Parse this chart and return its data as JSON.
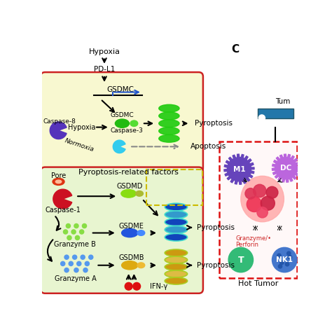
{
  "bg_color": "#ffffff",
  "upper_cell_bg": "#f8f8d0",
  "lower_cell_bg": "#e8f5d0",
  "upper_cell_border": "#cc2222",
  "lower_cell_border": "#cc2222",
  "title_C": "C",
  "label_hypoxia_top": "Hypoxia",
  "label_pdl1": "PD-L1",
  "label_gsdmc_top": "GSDMC",
  "label_gsdmc_mid": "GSDMC",
  "label_caspase8": "Caspase-8",
  "label_hypoxia_mid": "Hypoxia",
  "label_normoxia": "Normoxia",
  "label_caspase3": "Caspase-3",
  "label_pyroptosis1": "Pyroptosis",
  "label_apoptosis": "Apoptosis",
  "label_pyroptosis_factors": "Pyroptosis-related factors",
  "label_pore": "Pore",
  "label_caspase1": "Caspase-1",
  "label_gsdmd": "GSDMD",
  "label_gsdme": "GSDME",
  "label_gsdmb": "GSDMB",
  "label_granzymeb": "Granzyme B",
  "label_granzymeA": "Granzyme A",
  "label_ifng": "IFN-γ",
  "label_pyroptosis2": "Pyroptosis",
  "label_pyroptosis3": "Pyroptosis",
  "label_m1": "M1",
  "label_dc": "DC",
  "label_t": "T",
  "label_nk1": "NK1",
  "label_granzyme_perforin": "Granzyme/•\nPerforin",
  "label_hot_tumor": "Hot Tumor",
  "label_tumor_top": "Tum"
}
